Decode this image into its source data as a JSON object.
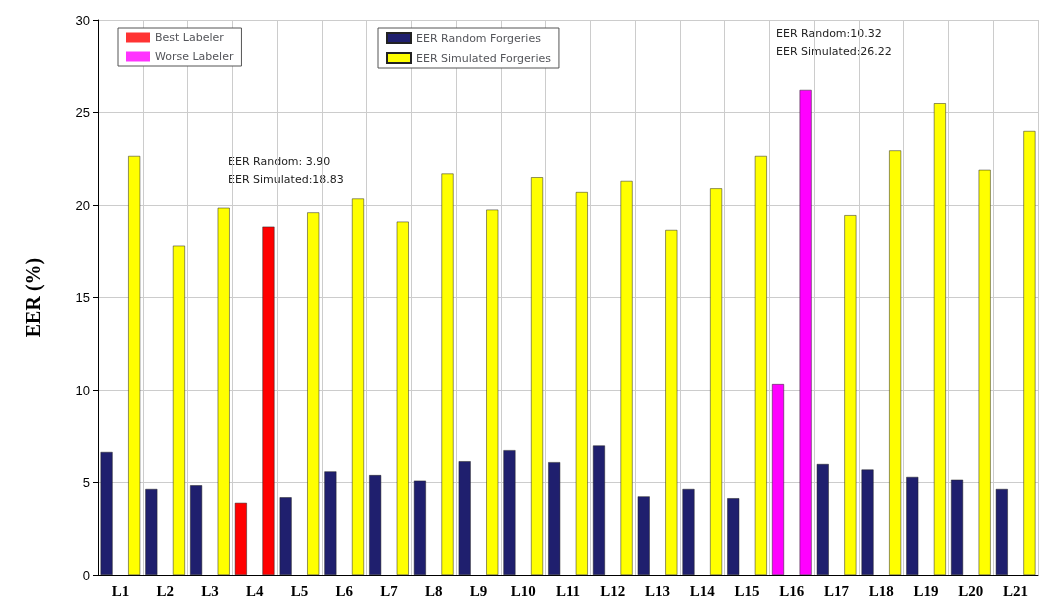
{
  "chart_data": {
    "type": "bar",
    "ylabel": "EER (%)",
    "categories": [
      "L1",
      "L2",
      "L3",
      "L4",
      "L5",
      "L6",
      "L7",
      "L8",
      "L9",
      "L10",
      "L11",
      "L12",
      "L13",
      "L14",
      "L15",
      "L16",
      "L17",
      "L18",
      "L19",
      "L20",
      "L21"
    ],
    "series": [
      {
        "name": "Best Labeler",
        "color": "#ff0000",
        "values": [
          null,
          null,
          null,
          null,
          null,
          null,
          null,
          null,
          null,
          null,
          null,
          null,
          null,
          null,
          null,
          null,
          null,
          null,
          null,
          null,
          null
        ]
      },
      {
        "name": "Worse Labeler",
        "color": "#ff00ff",
        "values": [
          null,
          null,
          null,
          null,
          null,
          null,
          null,
          null,
          null,
          null,
          null,
          null,
          null,
          null,
          null,
          null,
          null,
          null,
          null,
          null,
          null
        ]
      },
      {
        "name": "EER Random Forgeries",
        "color": "#1f1f6e",
        "colors": [
          "#1f1f6e",
          "#1f1f6e",
          "#1f1f6e",
          "#ff0000",
          "#1f1f6e",
          "#1f1f6e",
          "#1f1f6e",
          "#1f1f6e",
          "#1f1f6e",
          "#1f1f6e",
          "#1f1f6e",
          "#1f1f6e",
          "#1f1f6e",
          "#1f1f6e",
          "#1f1f6e",
          "#ff00ff",
          "#1f1f6e",
          "#1f1f6e",
          "#1f1f6e",
          "#1f1f6e",
          "#1f1f6e"
        ],
        "values": [
          6.65,
          4.65,
          4.85,
          3.9,
          4.2,
          5.6,
          5.4,
          5.1,
          6.15,
          6.75,
          6.1,
          7.0,
          4.25,
          4.65,
          4.15,
          10.32,
          6.0,
          5.7,
          5.3,
          5.15,
          4.65
        ]
      },
      {
        "name": "EER Simulated Forgeries",
        "color": "#ffff00",
        "colors": [
          "#ffff00",
          "#ffff00",
          "#ffff00",
          "#ff0000",
          "#ffff00",
          "#ffff00",
          "#ffff00",
          "#ffff00",
          "#ffff00",
          "#ffff00",
          "#ffff00",
          "#ffff00",
          "#ffff00",
          "#ffff00",
          "#ffff00",
          "#ff00ff",
          "#ffff00",
          "#ffff00",
          "#ffff00",
          "#ffff00",
          "#ffff00"
        ],
        "values": [
          22.65,
          17.8,
          19.85,
          18.83,
          19.6,
          20.35,
          19.1,
          21.7,
          19.75,
          21.5,
          20.7,
          21.3,
          18.65,
          20.9,
          22.65,
          26.22,
          19.45,
          22.95,
          25.5,
          21.9,
          24.0
        ]
      }
    ],
    "ylim": [
      0,
      30
    ],
    "yticks": [
      0,
      5,
      10,
      15,
      20,
      25,
      30
    ],
    "grid": true,
    "legend": "top left",
    "annotations": [
      "EER Random: 3.90",
      "EER Simulated:18.83",
      "EER Random:10.32",
      "EER Simulated:26.22"
    ]
  }
}
